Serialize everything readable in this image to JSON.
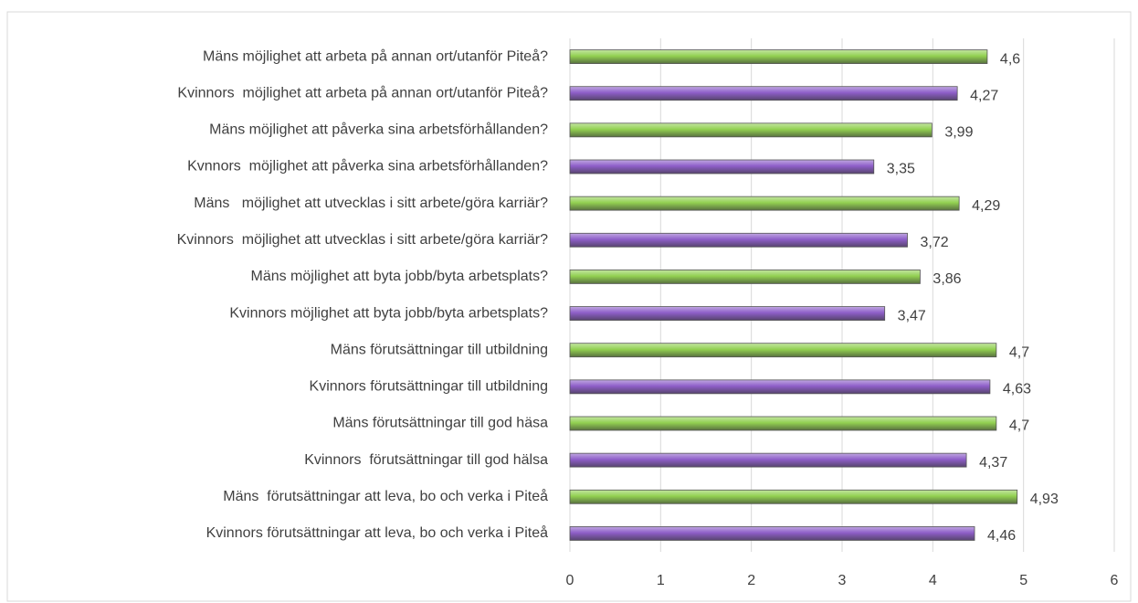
{
  "chart_data": {
    "type": "barh",
    "categories": [
      "Mäns möjlighet att arbeta på annan ort/utanför Piteå?",
      "Kvinnors  möjlighet att arbeta på annan ort/utanför Piteå?",
      "Mäns möjlighet att påverka sina arbetsförhållanden?",
      "Kvnnors  möjlighet att påverka sina arbetsförhållanden?",
      "Mäns   möjlighet att utvecklas i sitt arbete/göra karriär?",
      "Kvinnors  möjlighet att utvecklas i sitt arbete/göra karriär?",
      "Mäns möjlighet att byta jobb/byta arbetsplats?",
      "Kvinnors möjlighet att byta jobb/byta arbetsplats?",
      "Mäns förutsättningar till utbildning",
      "Kvinnors förutsättningar till utbildning",
      "Mäns förutsättningar till god häsa",
      "Kvinnors  förutsättningar till god hälsa",
      "Mäns  förutsättningar att leva, bo och verka i Piteå",
      "Kvinnors förutsättningar att leva, bo och verka i Piteå"
    ],
    "values": [
      4.6,
      4.27,
      3.99,
      3.35,
      4.29,
      3.72,
      3.86,
      3.47,
      4.7,
      4.63,
      4.7,
      4.37,
      4.93,
      4.46
    ],
    "value_labels": [
      "4,6",
      "4,27",
      "3,99",
      "3,35",
      "4,29",
      "3,72",
      "3,86",
      "3,47",
      "4,7",
      "4,63",
      "4,7",
      "4,37",
      "4,93",
      "4,46"
    ],
    "colors": [
      "#92d050",
      "#8e5ec8",
      "#92d050",
      "#8e5ec8",
      "#92d050",
      "#8e5ec8",
      "#92d050",
      "#8e5ec8",
      "#92d050",
      "#8e5ec8",
      "#92d050",
      "#8e5ec8",
      "#92d050",
      "#8e5ec8"
    ],
    "xlim": [
      0,
      6
    ],
    "xticks": [
      0,
      1,
      2,
      3,
      4,
      5,
      6
    ],
    "grid": true
  }
}
